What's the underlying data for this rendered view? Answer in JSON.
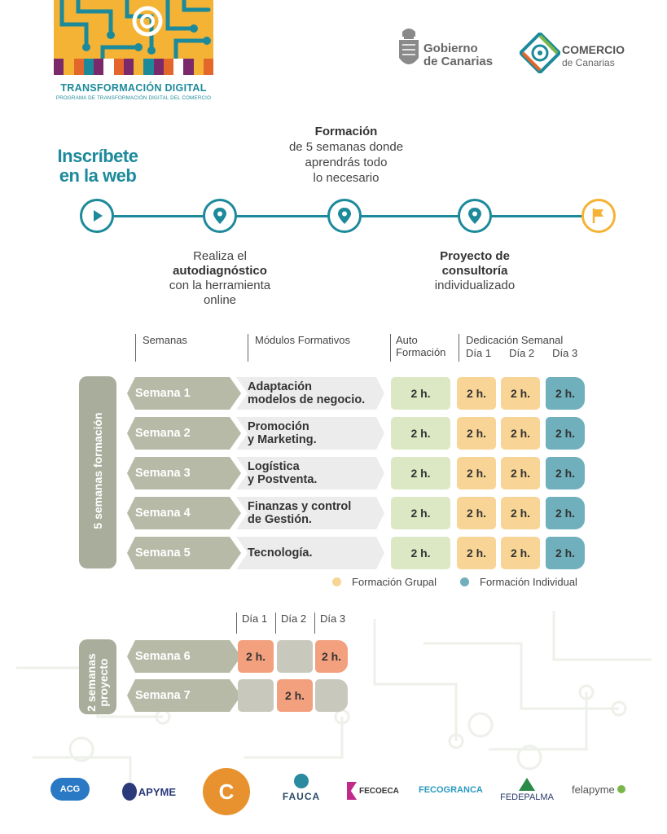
{
  "header": {
    "program_title": "TRANSFORMACIÓN DIGITAL",
    "program_subtitle": "PROGRAMA DE TRANSFORMACIÓN DIGITAL DEL COMERCIO",
    "gobierno_line1": "Gobierno",
    "gobierno_line2": "de Canarias",
    "comercio_title": "COMERCIO",
    "comercio_sub": "de Canarias",
    "strip_colors": [
      "#7a2a6a",
      "#f5b335",
      "#e3662b",
      "#1c8a9a",
      "#7a2a6a",
      "#ffffff",
      "#e3662b",
      "#7a2a6a",
      "#f5b335",
      "#1c8a9a",
      "#7a2a6a",
      "#e3662b",
      "#ffffff",
      "#7a2a6a",
      "#f5b335",
      "#e3662b"
    ]
  },
  "timeline": {
    "left_title_line1": "Inscríbete",
    "left_title_line2": "en la web",
    "top_bold": "Formación",
    "top_line1": "de 5 semanas donde",
    "top_line2": "aprendrás todo",
    "top_line3": "lo necesario",
    "below1_line1": "Realiza el",
    "below1_bold": "autodiagnóstico",
    "below1_line3": "con la herramienta",
    "below1_line4": "online",
    "below2_bold1": "Proyecto de",
    "below2_bold2": "consultoría",
    "below2_line3": "individualizado",
    "nodes": [
      "play-icon",
      "location-pin-icon",
      "location-pin-icon",
      "location-pin-icon",
      "flag-icon"
    ]
  },
  "table": {
    "col_semanas": "Semanas",
    "col_modulos": "Módulos Formativos",
    "col_auto1": "Auto",
    "col_auto2": "Formación",
    "col_dedicacion": "Dedicación Semanal",
    "dia1": "Día 1",
    "dia2": "Día 2",
    "dia3": "Día 3",
    "side_label": "5 semanas formación",
    "rows": [
      {
        "week": "Semana 1",
        "module1": "Adaptación",
        "module2": "modelos de negocio.",
        "auto": "2 h.",
        "d1": "2 h.",
        "d2": "2 h.",
        "d3": "2 h."
      },
      {
        "week": "Semana 2",
        "module1": "Promoción",
        "module2": "y Marketing.",
        "auto": "2 h.",
        "d1": "2 h.",
        "d2": "2 h.",
        "d3": "2 h."
      },
      {
        "week": "Semana 3",
        "module1": "Logística",
        "module2": "y Postventa.",
        "auto": "2 h.",
        "d1": "2 h.",
        "d2": "2 h.",
        "d3": "2 h."
      },
      {
        "week": "Semana 4",
        "module1": "Finanzas y control",
        "module2": "de Gestión.",
        "auto": "2 h.",
        "d1": "2 h.",
        "d2": "2 h.",
        "d3": "2 h."
      },
      {
        "week": "Semana 5",
        "module1": "Tecnología.",
        "module2": "",
        "auto": "2 h.",
        "d1": "2 h.",
        "d2": "2 h.",
        "d3": "2 h."
      }
    ],
    "legend_group": "Formación Grupal",
    "legend_individual": "Formación Individual",
    "color_group": "#f8d596",
    "color_individual": "#6fb0bc"
  },
  "project": {
    "side_label_1": "2 semanas",
    "side_label_2": "proyecto",
    "dia1": "Día 1",
    "dia2": "Día 2",
    "dia3": "Día 3",
    "rows": [
      {
        "week": "Semana 6",
        "d1": "2 h.",
        "d2": "",
        "d3": "2 h."
      },
      {
        "week": "Semana 7",
        "d1": "",
        "d2": "2 h.",
        "d3": ""
      }
    ]
  },
  "partners": [
    "ACG",
    "APYME",
    "C",
    "FAUCA",
    "FECOECA",
    "FECOGRANCA",
    "FEDEPALMA",
    "felapyme"
  ]
}
